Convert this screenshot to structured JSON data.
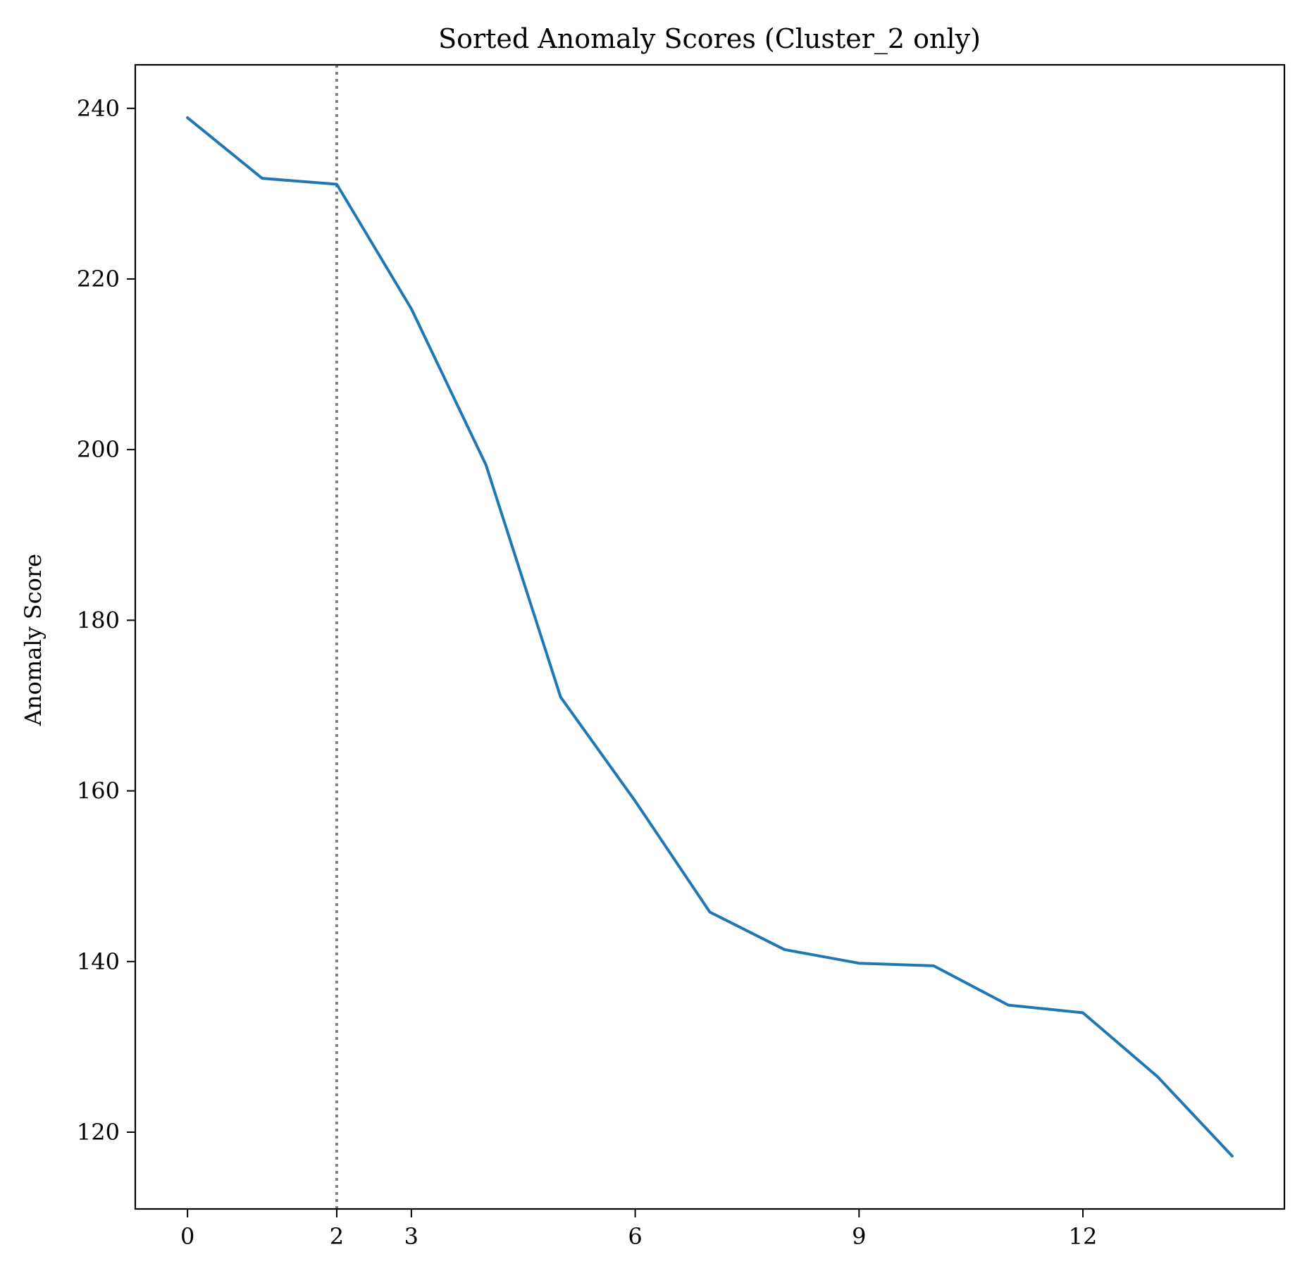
{
  "chart_data": {
    "type": "line",
    "title": "Sorted Anomaly Scores (Cluster_2 only)",
    "xlabel": "",
    "ylabel": "Anomaly Score",
    "x": [
      0,
      1,
      2,
      3,
      4,
      5,
      6,
      7,
      8,
      9,
      10,
      11,
      12,
      13,
      14
    ],
    "series": [
      {
        "values": [
          238.9,
          231.8,
          231.1,
          216.5,
          198.2,
          171.0,
          158.8,
          145.8,
          141.4,
          139.8,
          139.5,
          134.9,
          134.0,
          126.5,
          117.2
        ],
        "color": "#1f77b4"
      }
    ],
    "vline": {
      "x": 2,
      "style": "dotted",
      "color": "#808080"
    },
    "xlim": [
      -0.7,
      14.7
    ],
    "ylim": [
      111.0,
      245.1
    ],
    "xticks": [
      0,
      2,
      3,
      6,
      9,
      12
    ],
    "xtick_labels": [
      "0",
      "2",
      "3",
      "6",
      "9",
      "12"
    ],
    "yticks": [
      120,
      140,
      160,
      180,
      200,
      220,
      240
    ],
    "ytick_labels": [
      "120",
      "140",
      "160",
      "180",
      "200",
      "220",
      "240"
    ],
    "grid": false,
    "legend": "none"
  }
}
